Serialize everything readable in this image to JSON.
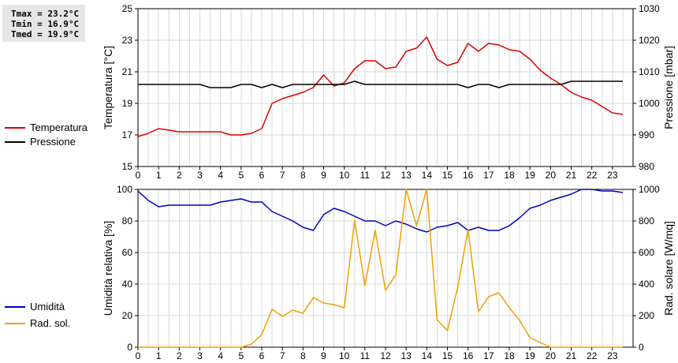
{
  "stats": {
    "tmax": "Tmax = 23.2°C",
    "tmin": "Tmin = 16.9°C",
    "tmed": "Tmed = 19.9°C"
  },
  "legend_top": [
    {
      "label": "Temperatura",
      "color": "#dd0000"
    },
    {
      "label": "Pressione",
      "color": "#000000"
    }
  ],
  "legend_bottom": [
    {
      "label": "Umidità",
      "color": "#0000bb"
    },
    {
      "label": "Rad. sol.",
      "color": "#f0a000"
    }
  ],
  "chart_data": [
    {
      "type": "line",
      "ylabel": "Temperatura [°C]",
      "y2label": "Pressione [mbar]",
      "ylim": [
        15,
        25
      ],
      "yticks": [
        15,
        17,
        19,
        21,
        23,
        25
      ],
      "y2lim": [
        980,
        1030
      ],
      "y2ticks": [
        980,
        990,
        1000,
        1010,
        1020,
        1030
      ],
      "xlim": [
        0,
        24
      ],
      "xticks": [
        "0",
        "1",
        "2",
        "3",
        "4",
        "5",
        "6",
        "7",
        "8",
        "9",
        "10",
        "11",
        "12",
        "13",
        "14",
        "15",
        "16",
        "17",
        "18",
        "19",
        "20",
        "21",
        "22",
        "23"
      ],
      "grid": true,
      "series": [
        {
          "name": "Temperatura",
          "axis": "left",
          "color": "#dd0000",
          "x": [
            0,
            0.5,
            1,
            1.5,
            2,
            2.5,
            3,
            3.5,
            4,
            4.5,
            5,
            5.5,
            6,
            6.5,
            7,
            7.5,
            8,
            8.5,
            9,
            9.5,
            10,
            10.5,
            11,
            11.5,
            12,
            12.5,
            13,
            13.5,
            14,
            14.5,
            15,
            15.5,
            16,
            16.5,
            17,
            17.5,
            18,
            18.5,
            19,
            19.5,
            20,
            20.5,
            21,
            21.5,
            22,
            22.5,
            23,
            23.5
          ],
          "values": [
            16.9,
            17.1,
            17.4,
            17.3,
            17.2,
            17.2,
            17.2,
            17.2,
            17.2,
            17.0,
            17.0,
            17.1,
            17.4,
            19.0,
            19.3,
            19.5,
            19.7,
            20.0,
            20.8,
            20.1,
            20.3,
            21.2,
            21.7,
            21.7,
            21.2,
            21.3,
            22.3,
            22.5,
            23.2,
            21.8,
            21.4,
            21.6,
            22.8,
            22.3,
            22.8,
            22.7,
            22.4,
            22.3,
            21.8,
            21.1,
            20.6,
            20.2,
            19.7,
            19.4,
            19.2,
            18.8,
            18.4,
            18.3
          ]
        },
        {
          "name": "Pressione",
          "axis": "right",
          "color": "#000000",
          "x": [
            0,
            0.5,
            1,
            1.5,
            2,
            2.5,
            3,
            3.5,
            4,
            4.5,
            5,
            5.5,
            6,
            6.5,
            7,
            7.5,
            8,
            8.5,
            9,
            9.5,
            10,
            10.5,
            11,
            11.5,
            12,
            12.5,
            13,
            13.5,
            14,
            14.5,
            15,
            15.5,
            16,
            16.5,
            17,
            17.5,
            18,
            18.5,
            19,
            19.5,
            20,
            20.5,
            21,
            21.5,
            22,
            22.5,
            23,
            23.5
          ],
          "values": [
            1006,
            1006,
            1006,
            1006,
            1006,
            1006,
            1006,
            1005,
            1005,
            1005,
            1006,
            1006,
            1005,
            1006,
            1005,
            1006,
            1006,
            1006,
            1006,
            1006,
            1006,
            1007,
            1006,
            1006,
            1006,
            1006,
            1006,
            1006,
            1006,
            1006,
            1006,
            1006,
            1005,
            1006,
            1006,
            1005,
            1006,
            1006,
            1006,
            1006,
            1006,
            1006,
            1007,
            1007,
            1007,
            1007,
            1007,
            1007
          ]
        }
      ]
    },
    {
      "type": "line",
      "ylabel": "Umidità relativa [%]",
      "y2label": "Rad. solare [W/mq]",
      "ylim": [
        0,
        100
      ],
      "yticks": [
        0,
        20,
        40,
        60,
        80,
        100
      ],
      "y2lim": [
        0,
        1000
      ],
      "y2ticks": [
        0,
        200,
        400,
        600,
        800,
        1000
      ],
      "xlim": [
        0,
        24
      ],
      "xticks": [
        "0",
        "1",
        "2",
        "3",
        "4",
        "5",
        "6",
        "7",
        "8",
        "9",
        "10",
        "11",
        "12",
        "13",
        "14",
        "15",
        "16",
        "17",
        "18",
        "19",
        "20",
        "21",
        "22",
        "23"
      ],
      "grid": true,
      "series": [
        {
          "name": "Umidità",
          "axis": "left",
          "color": "#0000bb",
          "x": [
            0,
            0.5,
            1,
            1.5,
            2,
            2.5,
            3,
            3.5,
            4,
            4.5,
            5,
            5.5,
            6,
            6.5,
            7,
            7.5,
            8,
            8.5,
            9,
            9.5,
            10,
            10.5,
            11,
            11.5,
            12,
            12.5,
            13,
            13.5,
            14,
            14.5,
            15,
            15.5,
            16,
            16.5,
            17,
            17.5,
            18,
            18.5,
            19,
            19.5,
            20,
            20.5,
            21,
            21.5,
            22,
            22.5,
            23,
            23.5
          ],
          "values": [
            99,
            93,
            89,
            90,
            90,
            90,
            90,
            90,
            92,
            93,
            94,
            92,
            92,
            86,
            83,
            80,
            76,
            74,
            84,
            88,
            86,
            83,
            80,
            80,
            77,
            80,
            78,
            75,
            73,
            76,
            77,
            79,
            74,
            76,
            74,
            74,
            77,
            82,
            88,
            90,
            93,
            95,
            97,
            100,
            100,
            99,
            99,
            98
          ]
        },
        {
          "name": "Rad. sol.",
          "axis": "right",
          "color": "#f0a000",
          "x": [
            0,
            0.5,
            1,
            1.5,
            2,
            2.5,
            3,
            3.5,
            4,
            4.5,
            5,
            5.5,
            6,
            6.5,
            7,
            7.5,
            8,
            8.5,
            9,
            9.5,
            10,
            10.5,
            11,
            11.5,
            12,
            12.5,
            13,
            13.5,
            14,
            14.5,
            15,
            15.5,
            16,
            16.5,
            17,
            17.5,
            18,
            18.5,
            19,
            19.5,
            20,
            20.5,
            21,
            21.5,
            22,
            22.5,
            23,
            23.5
          ],
          "values": [
            0,
            0,
            0,
            0,
            0,
            0,
            0,
            0,
            0,
            0,
            0,
            20,
            80,
            240,
            195,
            235,
            215,
            315,
            280,
            270,
            250,
            805,
            390,
            740,
            360,
            460,
            1000,
            770,
            1000,
            175,
            105,
            380,
            745,
            225,
            320,
            345,
            250,
            170,
            60,
            30,
            0,
            0,
            0,
            0,
            0,
            0,
            0,
            0
          ]
        }
      ]
    }
  ]
}
